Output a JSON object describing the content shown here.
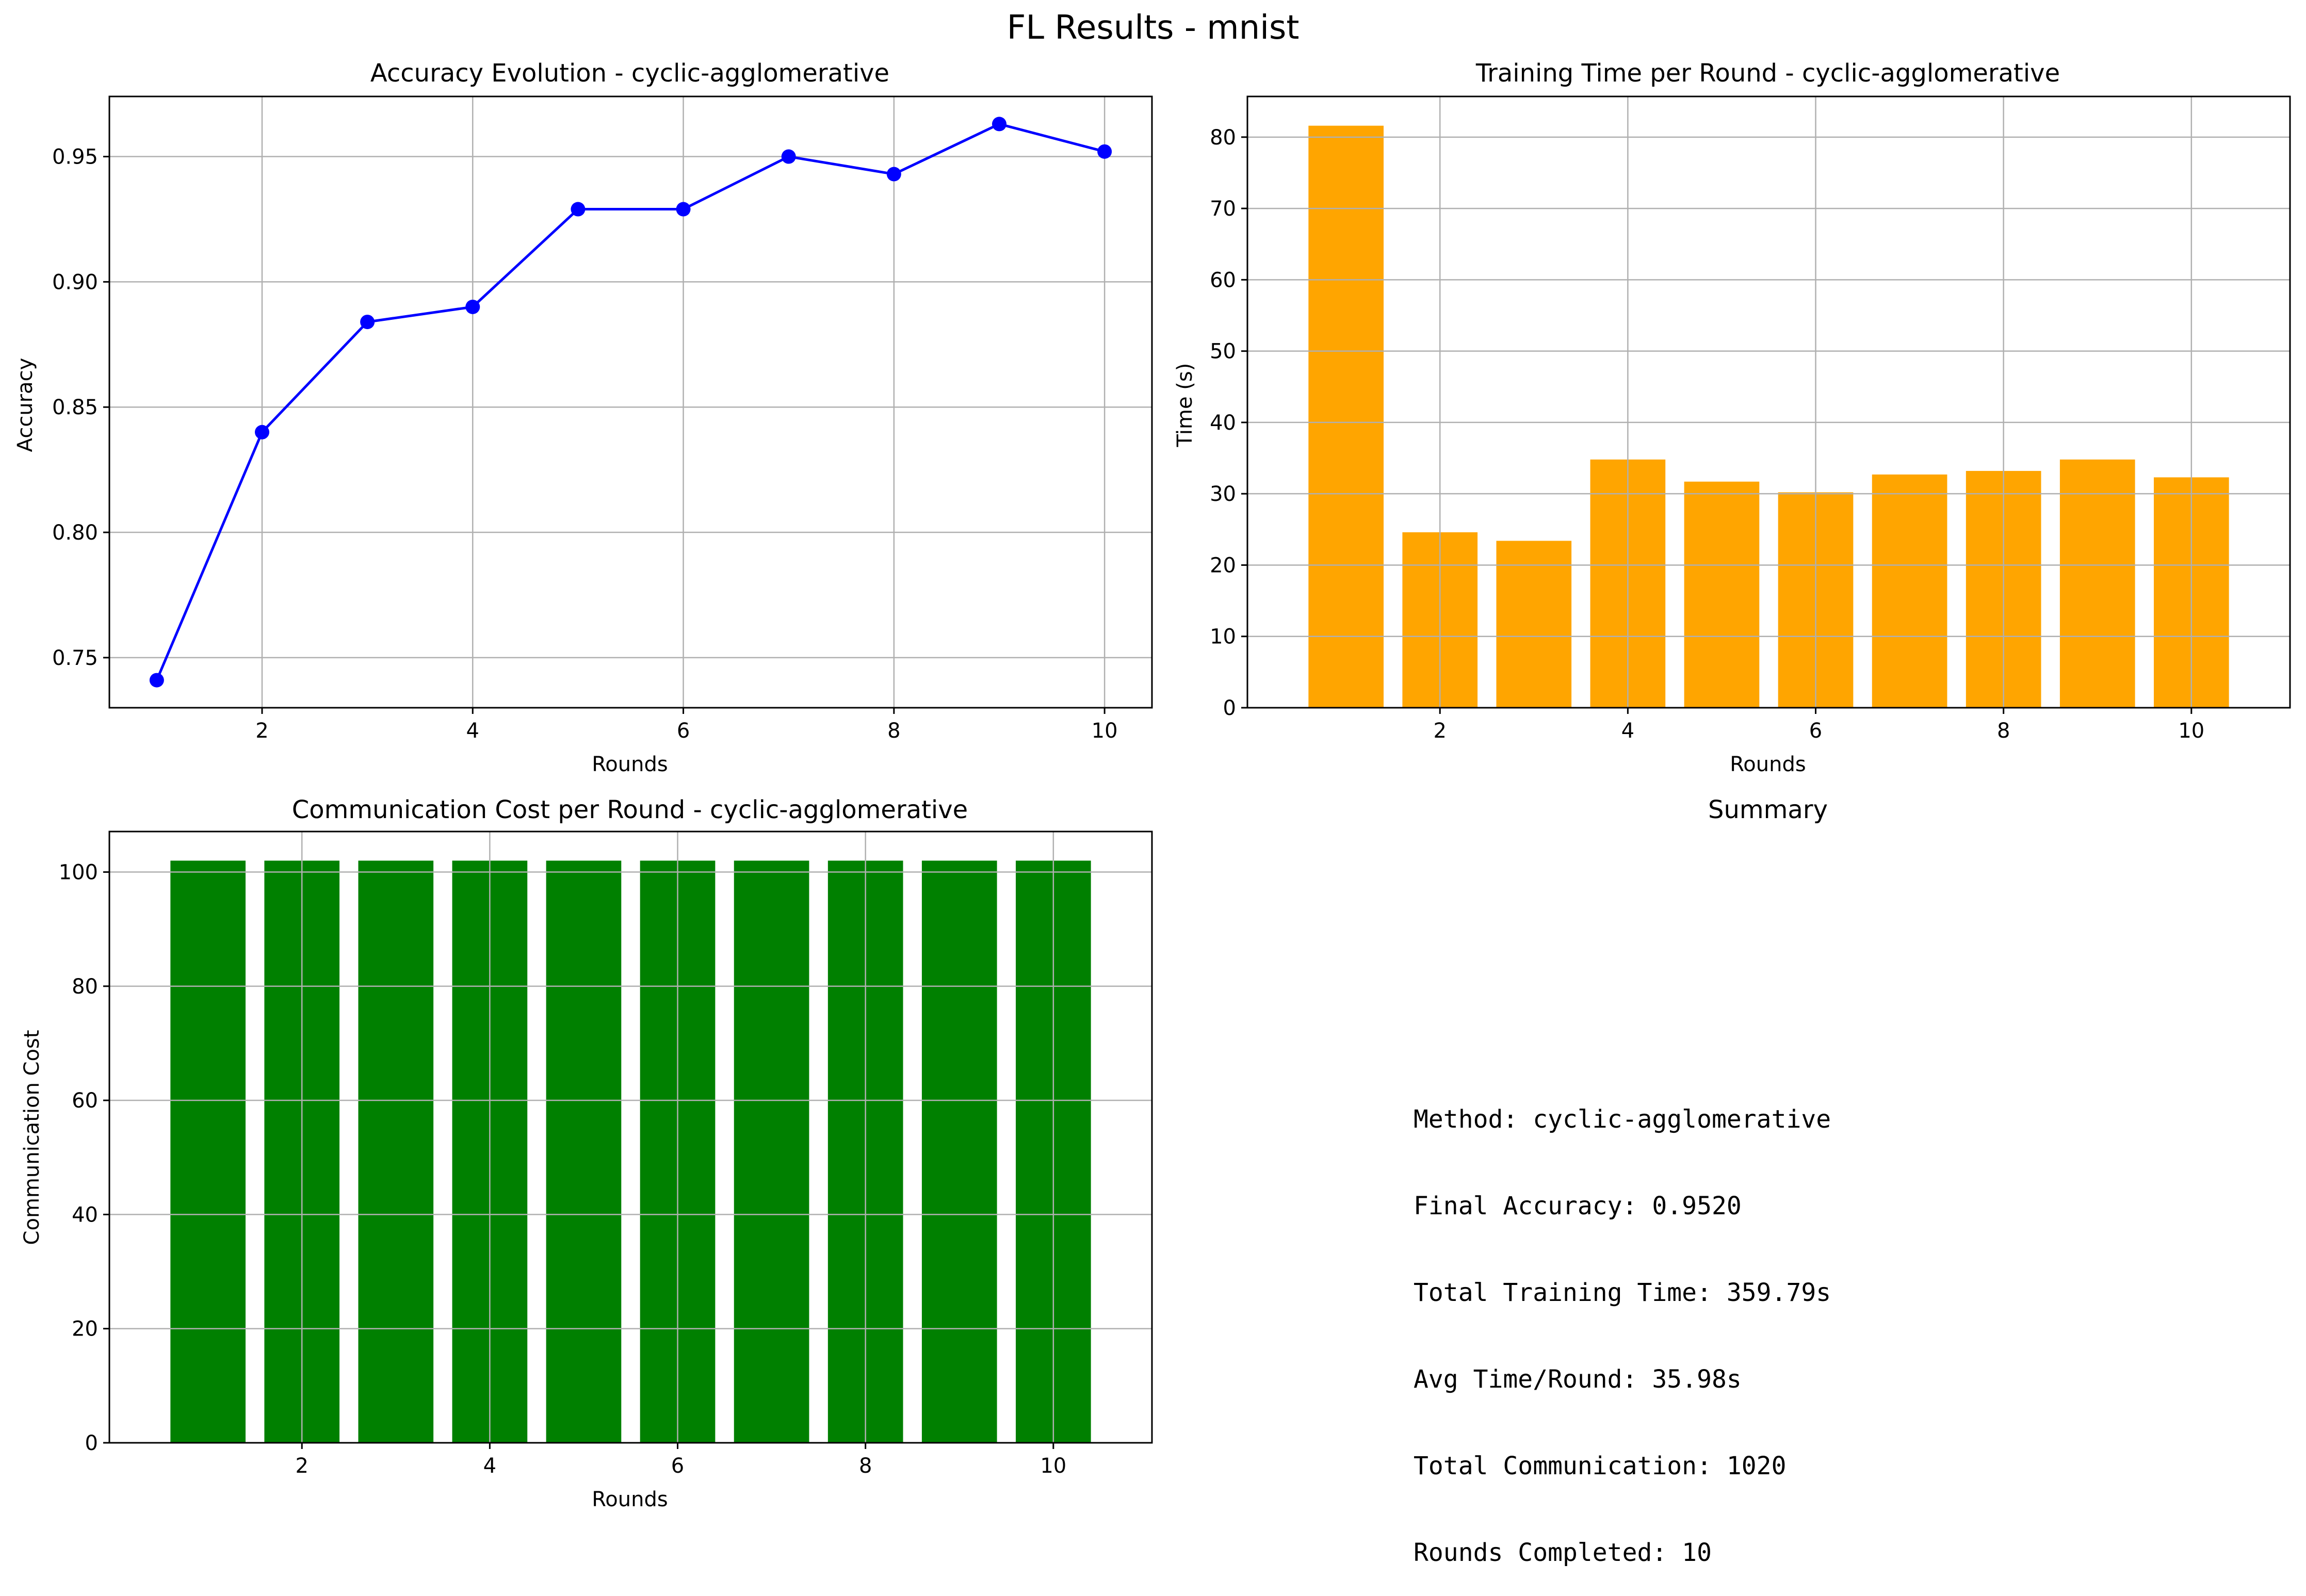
{
  "figure_title": "FL Results - mnist",
  "chart_data": [
    {
      "type": "line",
      "title": "Accuracy Evolution - cyclic-agglomerative",
      "xlabel": "Rounds",
      "ylabel": "Accuracy",
      "x": [
        1,
        2,
        3,
        4,
        5,
        6,
        7,
        8,
        9,
        10
      ],
      "series": [
        {
          "values": [
            0.741,
            0.84,
            0.884,
            0.89,
            0.929,
            0.929,
            0.95,
            0.943,
            0.963,
            0.952
          ]
        }
      ],
      "xlim": [
        0.55,
        10.45
      ],
      "ylim": [
        0.73,
        0.974
      ],
      "xticks": [
        2,
        4,
        6,
        8,
        10
      ],
      "yticks": [
        0.75,
        0.8,
        0.85,
        0.9,
        0.95
      ],
      "ytick_format": 2,
      "color": "#0000ff",
      "marker": "circle",
      "grid": true
    },
    {
      "type": "bar",
      "title": "Training Time per Round - cyclic-agglomerative",
      "xlabel": "Rounds",
      "ylabel": "Time (s)",
      "x": [
        1,
        2,
        3,
        4,
        5,
        6,
        7,
        8,
        9,
        10
      ],
      "series": [
        {
          "values": [
            81.6,
            24.6,
            23.4,
            34.8,
            31.7,
            30.2,
            32.7,
            33.2,
            34.8,
            32.3
          ]
        }
      ],
      "xlim": [
        -0.05,
        11.05
      ],
      "ylim": [
        0,
        85.7
      ],
      "xticks": [
        2,
        4,
        6,
        8,
        10
      ],
      "yticks": [
        0,
        10,
        20,
        30,
        40,
        50,
        60,
        70,
        80
      ],
      "ytick_format": 0,
      "bar_width": 0.8,
      "color": "#ffa500",
      "grid": true
    },
    {
      "type": "bar",
      "title": "Communication Cost per Round - cyclic-agglomerative",
      "xlabel": "Rounds",
      "ylabel": "Communication Cost",
      "x": [
        1,
        2,
        3,
        4,
        5,
        6,
        7,
        8,
        9,
        10
      ],
      "series": [
        {
          "values": [
            102,
            102,
            102,
            102,
            102,
            102,
            102,
            102,
            102,
            102
          ]
        }
      ],
      "xlim": [
        -0.05,
        11.05
      ],
      "ylim": [
        0,
        107.1
      ],
      "xticks": [
        2,
        4,
        6,
        8,
        10
      ],
      "yticks": [
        0,
        20,
        40,
        60,
        80,
        100
      ],
      "ytick_format": 0,
      "bar_width": 0.8,
      "color": "#008000",
      "grid": true
    }
  ],
  "summary": {
    "title": "Summary",
    "lines": [
      "Method: cyclic-agglomerative",
      "Final Accuracy: 0.9520",
      "Total Training Time: 359.79s",
      "Avg Time/Round: 35.98s",
      "Total Communication: 1020",
      "Rounds Completed: 10"
    ]
  }
}
